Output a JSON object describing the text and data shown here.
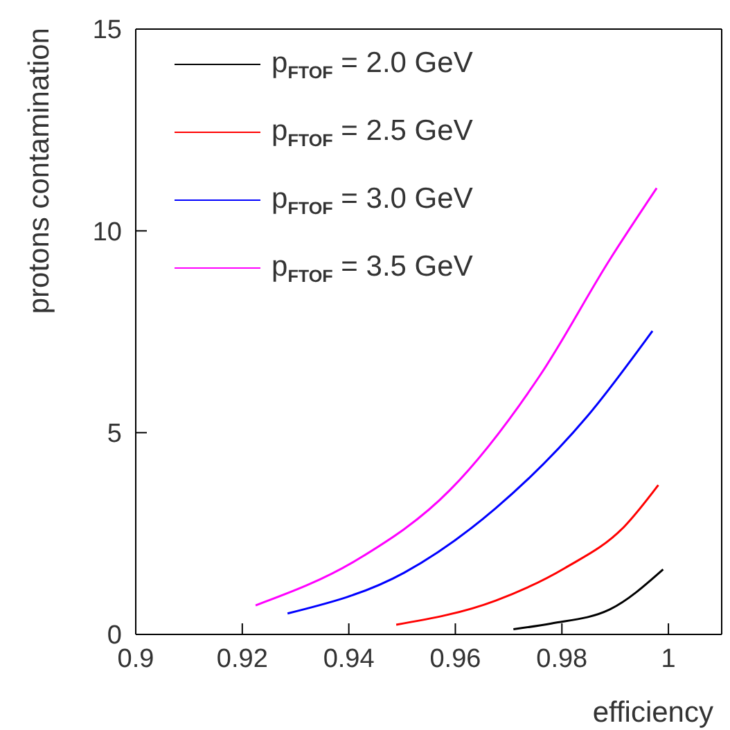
{
  "chart_data": {
    "type": "line",
    "xlabel": "efficiency",
    "ylabel": "protons contamination",
    "xlim": [
      0.9,
      1.01
    ],
    "xticks": [
      0.9,
      0.92,
      0.94,
      0.96,
      0.98,
      1
    ],
    "ylim": [
      0,
      15
    ],
    "yticks": [
      0,
      5,
      10,
      15
    ],
    "grid": false,
    "legend": "top left",
    "marker": "none",
    "line_style": "solid",
    "series": [
      {
        "name": "p$_{FTOF}$ = 2.0 GeV",
        "color": "#000000",
        "x": [
          0.9709,
          0.978,
          0.989,
          0.999
        ],
        "values": [
          0.13,
          0.27,
          0.62,
          1.61
        ]
      },
      {
        "name": "p$_{FTOF}$ = 2.5 GeV",
        "color": "#ff0000",
        "x": [
          0.9489,
          0.9676,
          0.9805,
          0.9917,
          0.9981
        ],
        "values": [
          0.24,
          0.84,
          1.64,
          2.67,
          3.7
        ]
      },
      {
        "name": "p$_{FTOF}$ = 3.0 GeV",
        "color": "#0000ff",
        "x": [
          0.9285,
          0.9504,
          0.9676,
          0.9848,
          0.997
        ],
        "values": [
          0.52,
          1.53,
          3.13,
          5.41,
          7.52
        ]
      },
      {
        "name": "p$_{FTOF}$ = 3.5 GeV",
        "color": "#ff00ff",
        "x": [
          0.9225,
          0.9418,
          0.959,
          0.976,
          0.989,
          0.9978
        ],
        "values": [
          0.72,
          1.87,
          3.58,
          6.44,
          9.29,
          11.06
        ]
      }
    ]
  }
}
